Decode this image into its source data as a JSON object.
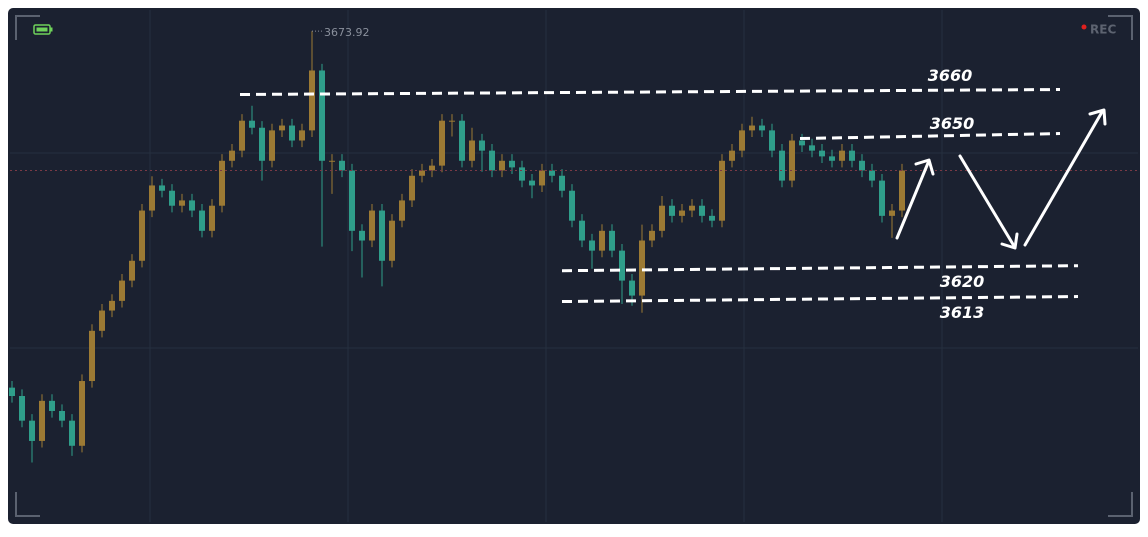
{
  "chart_data": {
    "type": "candlestick",
    "ylim": [
      3560,
      3681
    ],
    "up_color": "#9c7a34",
    "down_color": "#2f9e8a",
    "open": [
      3593.0,
      3591.1,
      3585.5,
      3580.9,
      3590.0,
      3587.7,
      3585.5,
      3579.8,
      3594.5,
      3605.9,
      3610.5,
      3612.7,
      3617.3,
      3621.8,
      3633.2,
      3638.9,
      3637.7,
      3634.3,
      3635.5,
      3633.2,
      3628.6,
      3634.3,
      3644.5,
      3646.8,
      3653.6,
      3652.0,
      3644.5,
      3651.4,
      3652.5,
      3649.1,
      3651.4,
      3665.0,
      3644.5,
      3644.5,
      3642.3,
      3628.6,
      3626.4,
      3633.2,
      3621.8,
      3630.9,
      3635.5,
      3641.1,
      3642.3,
      3643.4,
      3653.6,
      3653.6,
      3644.5,
      3649.1,
      3646.8,
      3642.3,
      3644.5,
      3643.0,
      3640.0,
      3638.9,
      3642.3,
      3641.1,
      3637.7,
      3630.9,
      3626.4,
      3624.1,
      3628.6,
      3624.1,
      3617.3,
      3613.9,
      3626.4,
      3628.6,
      3634.3,
      3632.0,
      3633.2,
      3634.3,
      3632.0,
      3630.9,
      3644.5,
      3646.8,
      3651.4,
      3652.5,
      3651.4,
      3646.8,
      3640.0,
      3649.1,
      3648.0,
      3646.8,
      3645.5,
      3644.5,
      3646.8,
      3644.5,
      3642.3,
      3640.0,
      3632.0,
      3633.2
    ],
    "high": [
      3594.5,
      3592.6,
      3587.0,
      3591.5,
      3591.5,
      3589.2,
      3587.0,
      3596.0,
      3607.4,
      3612.0,
      3614.2,
      3618.8,
      3623.3,
      3634.7,
      3641.0,
      3640.4,
      3639.2,
      3637.0,
      3637.0,
      3634.7,
      3635.8,
      3646.0,
      3648.3,
      3655.1,
      3657.0,
      3653.5,
      3652.9,
      3654.0,
      3654.0,
      3652.9,
      3673.92,
      3666.5,
      3646.0,
      3646.0,
      3643.8,
      3630.1,
      3634.7,
      3634.7,
      3632.4,
      3637.0,
      3642.6,
      3643.8,
      3644.9,
      3655.1,
      3655.1,
      3655.1,
      3652.0,
      3650.6,
      3648.3,
      3646.0,
      3646.0,
      3644.5,
      3641.5,
      3643.8,
      3643.8,
      3642.6,
      3639.2,
      3632.4,
      3627.9,
      3630.1,
      3630.1,
      3625.6,
      3618.8,
      3630.0,
      3630.1,
      3636.5,
      3635.8,
      3634.7,
      3635.8,
      3635.8,
      3633.5,
      3646.0,
      3648.3,
      3652.9,
      3654.5,
      3654.0,
      3652.9,
      3648.3,
      3650.6,
      3650.6,
      3649.5,
      3648.3,
      3647.0,
      3648.3,
      3648.3,
      3646.0,
      3643.8,
      3641.5,
      3634.7,
      3643.8
    ],
    "low": [
      3589.6,
      3584.0,
      3576.0,
      3579.4,
      3586.2,
      3584.0,
      3577.5,
      3578.3,
      3593.0,
      3604.4,
      3609.0,
      3611.2,
      3615.8,
      3620.3,
      3631.7,
      3636.2,
      3632.8,
      3632.8,
      3631.7,
      3627.1,
      3627.1,
      3632.8,
      3643.0,
      3645.3,
      3650.5,
      3640.0,
      3643.0,
      3649.9,
      3647.6,
      3647.6,
      3649.9,
      3625.0,
      3637.0,
      3640.8,
      3624.0,
      3618.0,
      3624.9,
      3616.0,
      3620.3,
      3629.4,
      3634.0,
      3639.6,
      3640.8,
      3641.9,
      3650.0,
      3643.0,
      3643.0,
      3642.0,
      3640.8,
      3640.8,
      3641.5,
      3638.5,
      3636.0,
      3637.4,
      3639.6,
      3636.2,
      3629.4,
      3624.9,
      3620.0,
      3622.6,
      3622.6,
      3612.0,
      3611.6,
      3610.0,
      3624.9,
      3627.1,
      3630.5,
      3630.5,
      3631.7,
      3630.5,
      3629.4,
      3629.4,
      3643.0,
      3645.3,
      3649.9,
      3649.9,
      3645.3,
      3638.5,
      3638.5,
      3646.5,
      3645.3,
      3644.0,
      3643.0,
      3643.0,
      3643.0,
      3640.8,
      3638.5,
      3630.5,
      3627.0,
      3631.7
    ],
    "close": [
      3591.1,
      3585.5,
      3580.9,
      3590.0,
      3587.7,
      3585.5,
      3579.8,
      3594.5,
      3605.9,
      3610.5,
      3612.7,
      3617.3,
      3621.8,
      3633.2,
      3638.9,
      3637.7,
      3634.3,
      3635.5,
      3633.2,
      3628.6,
      3634.3,
      3644.5,
      3646.8,
      3653.6,
      3652.0,
      3644.5,
      3651.4,
      3652.5,
      3649.1,
      3651.4,
      3665.0,
      3644.5,
      3644.5,
      3642.3,
      3628.6,
      3626.4,
      3633.2,
      3621.8,
      3630.9,
      3635.5,
      3641.1,
      3642.3,
      3643.4,
      3653.6,
      3653.6,
      3644.5,
      3649.1,
      3646.8,
      3642.3,
      3644.5,
      3643.0,
      3640.0,
      3638.9,
      3642.3,
      3641.1,
      3637.7,
      3630.9,
      3626.4,
      3624.1,
      3628.6,
      3624.1,
      3617.3,
      3613.9,
      3626.4,
      3628.6,
      3634.3,
      3632.0,
      3633.2,
      3634.3,
      3632.0,
      3630.9,
      3644.5,
      3646.8,
      3651.4,
      3652.5,
      3651.4,
      3646.8,
      3640.0,
      3649.1,
      3648.0,
      3646.8,
      3645.5,
      3644.5,
      3646.8,
      3644.5,
      3642.3,
      3640.0,
      3632.0,
      3633.2,
      3642.3
    ],
    "levels": [
      3660,
      3650,
      3620,
      3613
    ],
    "rec_label": "REC"
  }
}
